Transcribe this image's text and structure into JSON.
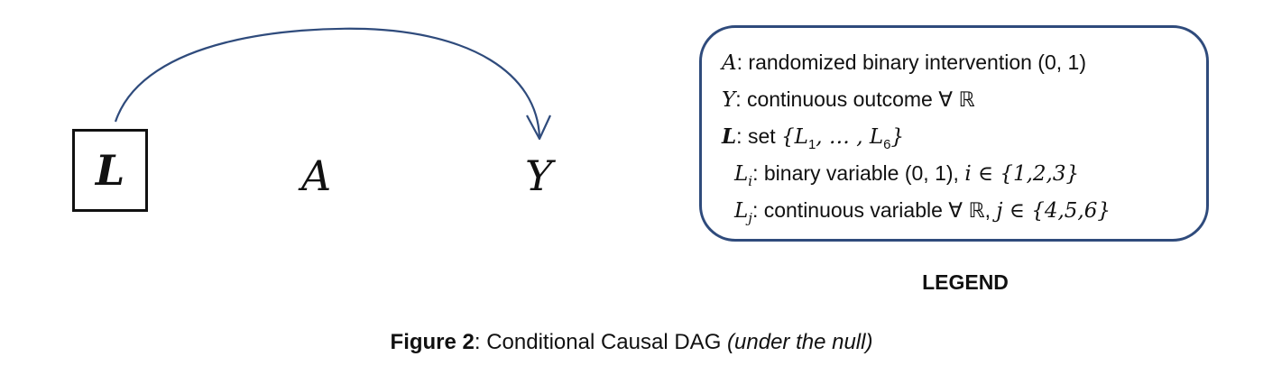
{
  "nodes": {
    "L": "L",
    "A": "A",
    "Y": "Y"
  },
  "legend": {
    "title": "LEGEND",
    "line1": {
      "sym": "A",
      "text": ": randomized binary intervention (0, 1)"
    },
    "line2": {
      "sym": "Y",
      "text": ": continuous outcome ∀ ℝ"
    },
    "line3": {
      "sym": "L",
      "text": ": set ",
      "set_open": "{",
      "set_a": "L",
      "sub1": "1",
      "ellipsis": ", … , ",
      "set_b": "L",
      "sub6": "6",
      "set_close": "}"
    },
    "line4": {
      "sym": "L",
      "sub": "i",
      "text": ": binary variable (0, 1), ",
      "idx": "i",
      "range": " ∈ {1,2,3}"
    },
    "line5": {
      "sym": "L",
      "sub": "j",
      "text": ": continuous variable ∀ ℝ, ",
      "idx": "j",
      "range": " ∈ {4,5,6}"
    }
  },
  "caption": {
    "label": "Figure 2",
    "text": ": Conditional Causal DAG ",
    "note": "(under the null)"
  },
  "colors": {
    "arrow": "#2f4b7c",
    "legend_border": "#2f4b7c",
    "ink": "#111111"
  }
}
